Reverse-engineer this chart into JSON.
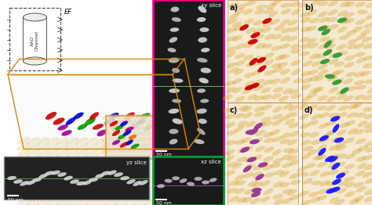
{
  "fig_width": 4.74,
  "fig_height": 2.62,
  "dpi": 100,
  "background": "#ffffff",
  "panel_labels": [
    "a)",
    "b)",
    "c)",
    "d)"
  ],
  "panel_label_color": "#000000",
  "xy_slice_label": "xy slice",
  "yz_slice_label": "yz slice",
  "xz_slice_label": "xz slice",
  "ef_label": "EF",
  "aao_label": "AAO\nChannel",
  "scale_bar_label": "50 nm",
  "box_color_orange": "#D4880A",
  "box_color_pink": "#E8007A",
  "box_color_green": "#009933",
  "rod_colors_main": [
    "#CC0000",
    "#0000CC",
    "#009900",
    "#990099"
  ],
  "panel_a_color": "#CC0000",
  "panel_b_color": "#339933",
  "panel_c_color": "#993399",
  "panel_d_color": "#1a1aff",
  "bg_tan": "#f5e8c0",
  "bg_gray": "#d0d0d0"
}
